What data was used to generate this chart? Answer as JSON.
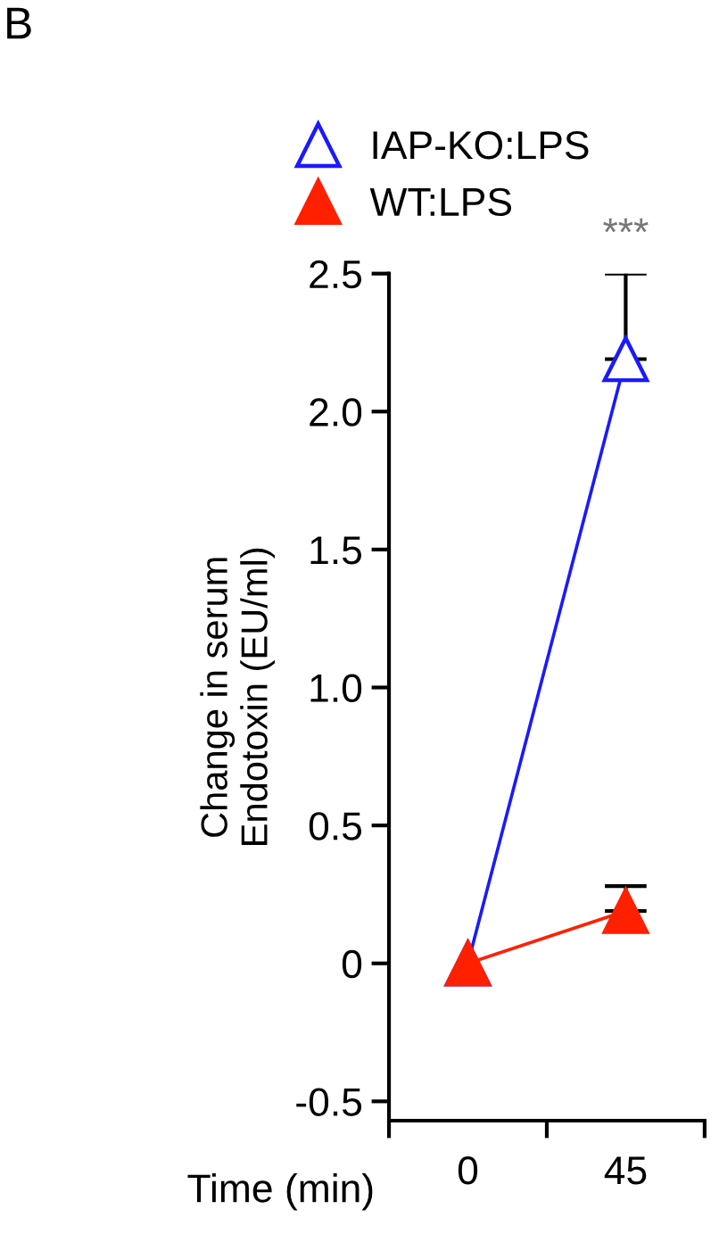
{
  "chart_data": {
    "type": "line",
    "categories": [
      "0",
      "45"
    ],
    "xlabel": "Time (min)",
    "ylabel": "Change in serum\nEndotoxin (EU/ml)",
    "series": [
      {
        "name": "IAP-KO:LPS",
        "color": "#1a1aff",
        "values": [
          0,
          2.19
        ],
        "errors": [
          null,
          [
            2.19,
            2.5
          ]
        ],
        "marker": "triangle"
      },
      {
        "name": "WT:LPS",
        "color": "#ff2000",
        "values": [
          0,
          0.19
        ],
        "errors": [
          null,
          [
            0.19,
            0.28
          ]
        ],
        "marker": "triangle"
      }
    ],
    "ylim": [
      -0.57,
      2.5
    ],
    "yticks": [
      -0.5,
      0,
      0.5,
      {
        "value": 1,
        "label": "1.0"
      },
      1.5,
      {
        "value": 2,
        "label": "2.0"
      },
      2.5
    ],
    "annotations": [
      "B",
      {
        "text": "***",
        "x": "45",
        "y": 2.5
      }
    ],
    "legend": "top",
    "grid": false
  }
}
